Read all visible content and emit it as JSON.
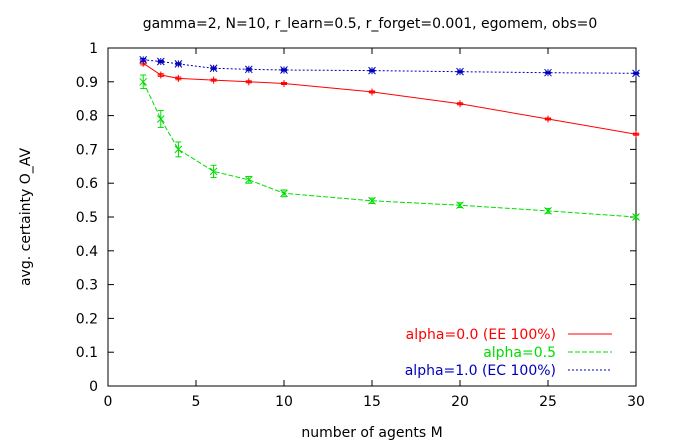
{
  "chart_data": {
    "type": "line",
    "title": "gamma=2, N=10, r_learn=0.5, r_forget=0.001, egomem, obs=0",
    "xlabel": "number of agents M",
    "ylabel": "avg. certainty O_AV",
    "xlim": [
      0,
      30
    ],
    "ylim": [
      0,
      1
    ],
    "xticks": [
      "0",
      "5",
      "10",
      "15",
      "20",
      "25",
      "30"
    ],
    "yticks": [
      "0",
      "0.1",
      "0.2",
      "0.3",
      "0.4",
      "0.5",
      "0.6",
      "0.7",
      "0.8",
      "0.9",
      "1"
    ],
    "grid": false,
    "legend_position": "bottom-right",
    "series": [
      {
        "name": "alpha=0.0 (EE 100%)",
        "color": "#ff0000",
        "dash": "solid",
        "marker": "plus",
        "x": [
          2,
          3,
          4,
          6,
          8,
          10,
          15,
          20,
          25,
          30
        ],
        "y": [
          0.955,
          0.92,
          0.91,
          0.905,
          0.9,
          0.895,
          0.87,
          0.835,
          0.79,
          0.745
        ],
        "err": [
          0.005,
          0.004,
          0.004,
          0.003,
          0.003,
          0.003,
          0.003,
          0.003,
          0.003,
          0.003
        ]
      },
      {
        "name": "alpha=0.5",
        "color": "#00dd00",
        "dash": "dash",
        "marker": "x",
        "x": [
          2,
          3,
          4,
          6,
          8,
          10,
          15,
          20,
          25,
          30
        ],
        "y": [
          0.9,
          0.79,
          0.7,
          0.635,
          0.61,
          0.57,
          0.548,
          0.535,
          0.518,
          0.5
        ],
        "err": [
          0.02,
          0.025,
          0.022,
          0.018,
          0.01,
          0.01,
          0.008,
          0.007,
          0.007,
          0.006
        ]
      },
      {
        "name": "alpha=1.0  (EC 100%)",
        "color": "#0000bb",
        "dash": "dot",
        "marker": "star",
        "x": [
          2,
          3,
          4,
          6,
          8,
          10,
          15,
          20,
          25,
          30
        ],
        "y": [
          0.965,
          0.96,
          0.953,
          0.94,
          0.937,
          0.935,
          0.933,
          0.93,
          0.927,
          0.925
        ],
        "err": [
          0.004,
          0.003,
          0.003,
          0.003,
          0.003,
          0.003,
          0.002,
          0.002,
          0.002,
          0.002
        ]
      }
    ]
  }
}
